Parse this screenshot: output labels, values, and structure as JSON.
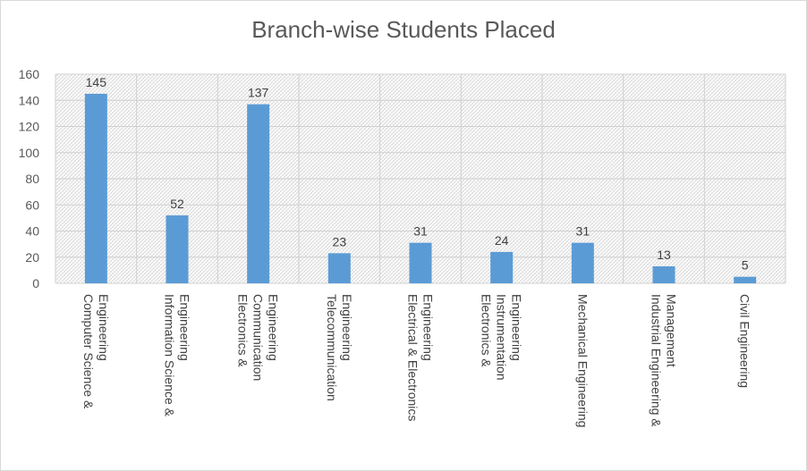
{
  "chart_data": {
    "type": "bar",
    "title": "Branch-wise Students Placed",
    "xlabel": "",
    "ylabel": "",
    "ylim": [
      0,
      160
    ],
    "yticks": [
      0,
      20,
      40,
      60,
      80,
      100,
      120,
      140,
      160
    ],
    "grid": true,
    "legend": "none",
    "bar_color": "#5b9bd5",
    "categories": [
      [
        "Computer Science &",
        "Engineering"
      ],
      [
        "Information Science &",
        "Engineering"
      ],
      [
        "Electronics &",
        "Communication",
        "Engineering"
      ],
      [
        "Telecommunication",
        "Engineering"
      ],
      [
        "Electrical & Electronics",
        "Engineering"
      ],
      [
        "Electronics &",
        "Instrumentation",
        "Engineering"
      ],
      [
        "Mechanical Engineering"
      ],
      [
        "Industrial Engineering &",
        "Management"
      ],
      [
        "Civil Engineering"
      ]
    ],
    "values": [
      145,
      52,
      137,
      23,
      31,
      24,
      31,
      13,
      5
    ]
  }
}
